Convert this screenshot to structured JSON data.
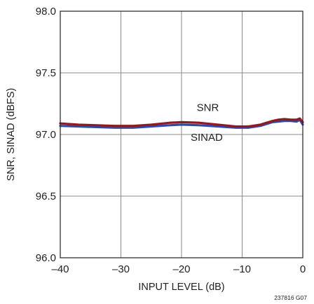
{
  "chart_data": {
    "type": "line",
    "xlabel": "INPUT LEVEL (dB)",
    "ylabel": "SNR, SINAD (dBFS)",
    "xlim": [
      -40,
      0
    ],
    "ylim": [
      96.0,
      98.0
    ],
    "x_ticks": [
      -40,
      -30,
      -20,
      -10,
      0
    ],
    "x_tick_labels": [
      "–40",
      "–30",
      "–20",
      "–10",
      "0"
    ],
    "y_ticks": [
      96.0,
      96.5,
      97.0,
      97.5,
      98.0
    ],
    "y_tick_labels": [
      "96.0",
      "96.5",
      "97.0",
      "97.5",
      "98.0"
    ],
    "grid": true,
    "series": [
      {
        "name": "SNR",
        "color": "#8e1b22",
        "x": [
          -40,
          -37,
          -34,
          -31,
          -28,
          -25,
          -22,
          -20,
          -17,
          -14,
          -11,
          -9,
          -7,
          -6,
          -5,
          -4,
          -3,
          -2,
          -1,
          -0.5,
          0
        ],
        "y": [
          97.09,
          97.08,
          97.075,
          97.07,
          97.07,
          97.08,
          97.095,
          97.1,
          97.095,
          97.08,
          97.065,
          97.065,
          97.08,
          97.095,
          97.11,
          97.12,
          97.125,
          97.12,
          97.12,
          97.13,
          97.1
        ]
      },
      {
        "name": "SINAD",
        "color": "#2e4aa8",
        "x": [
          -40,
          -37,
          -34,
          -31,
          -28,
          -25,
          -22,
          -20,
          -17,
          -14,
          -11,
          -9,
          -7,
          -6,
          -5,
          -4,
          -3,
          -2,
          -1,
          -0.5,
          0
        ],
        "y": [
          97.07,
          97.065,
          97.06,
          97.055,
          97.055,
          97.065,
          97.075,
          97.08,
          97.075,
          97.065,
          97.055,
          97.055,
          97.07,
          97.085,
          97.1,
          97.105,
          97.11,
          97.11,
          97.105,
          97.12,
          97.08
        ]
      }
    ],
    "annotations": [
      {
        "text": "SNR",
        "x": -17.5,
        "y": 97.19
      },
      {
        "text": "SINAD",
        "x": -18.5,
        "y": 96.95
      }
    ],
    "figure_id": "237816 G07"
  }
}
